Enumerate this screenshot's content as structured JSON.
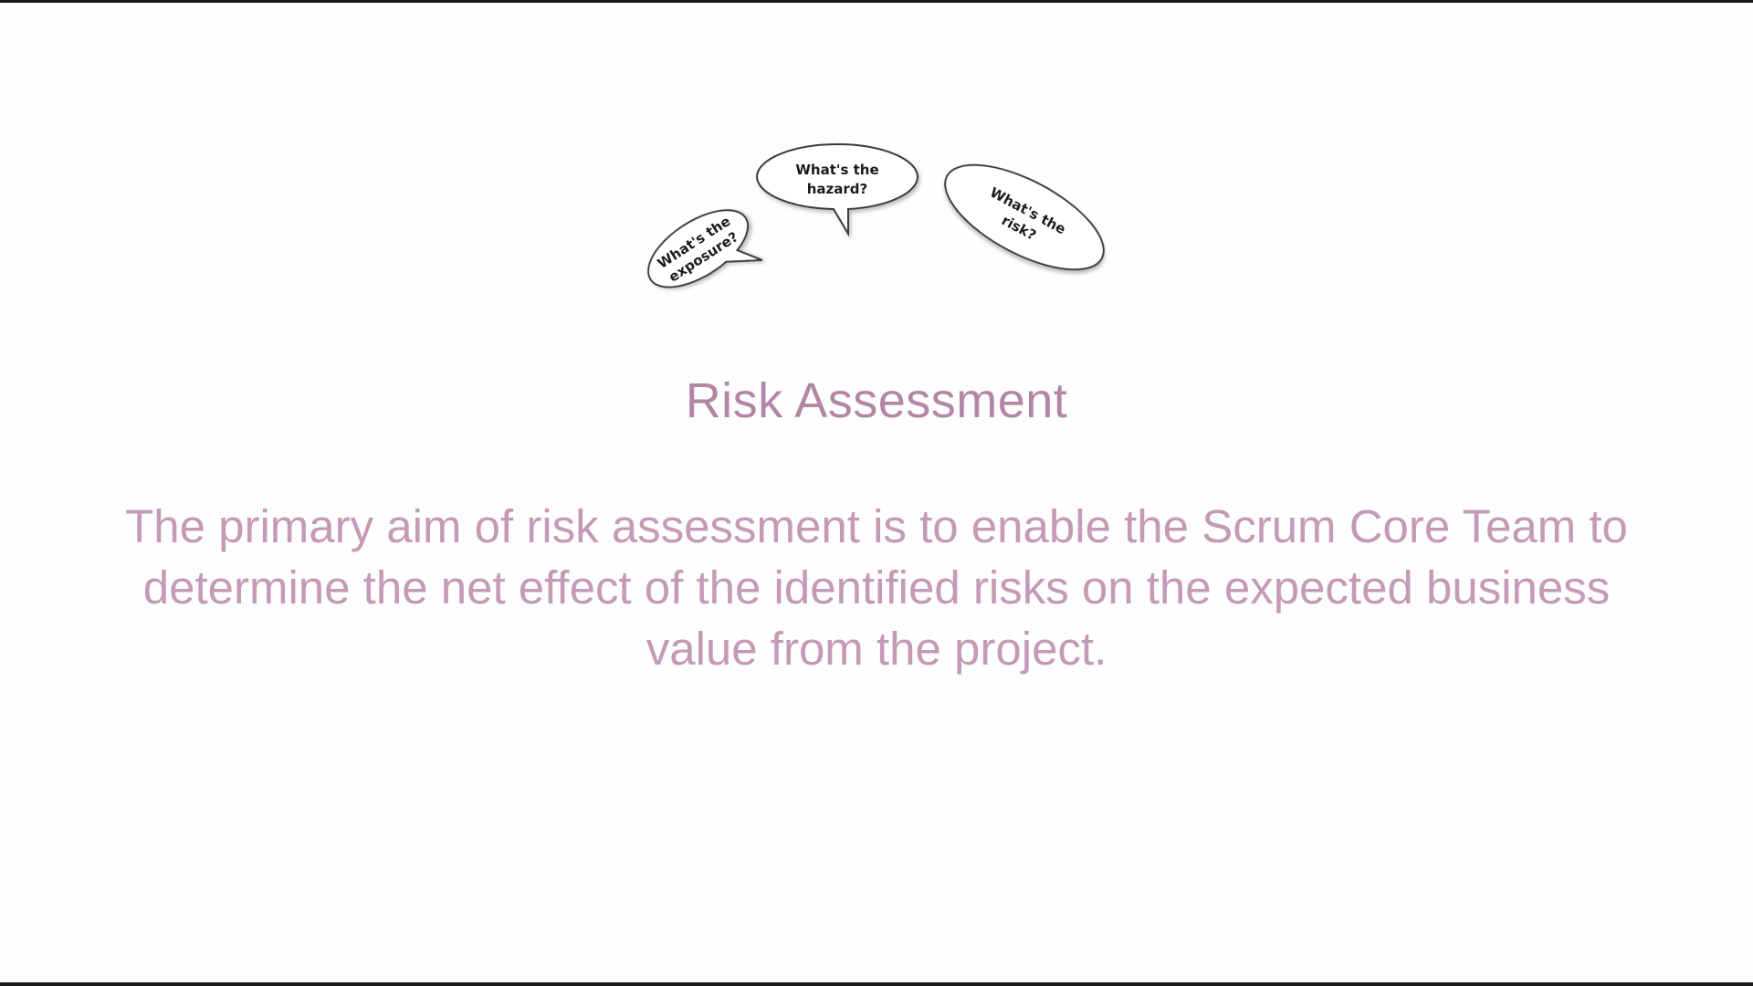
{
  "bubbles": {
    "exposure": {
      "line1": "What's the",
      "line2": "exposure?"
    },
    "hazard": {
      "line1": "What's the",
      "line2": "hazard?"
    },
    "risk": {
      "line1": "What's the",
      "line2": "risk?"
    }
  },
  "slide": {
    "title": "Risk Assessment",
    "body": "The primary aim of risk assessment is to enable the Scrum Core Team to determine the net effect of the identified risks on the expected business value from the project."
  }
}
